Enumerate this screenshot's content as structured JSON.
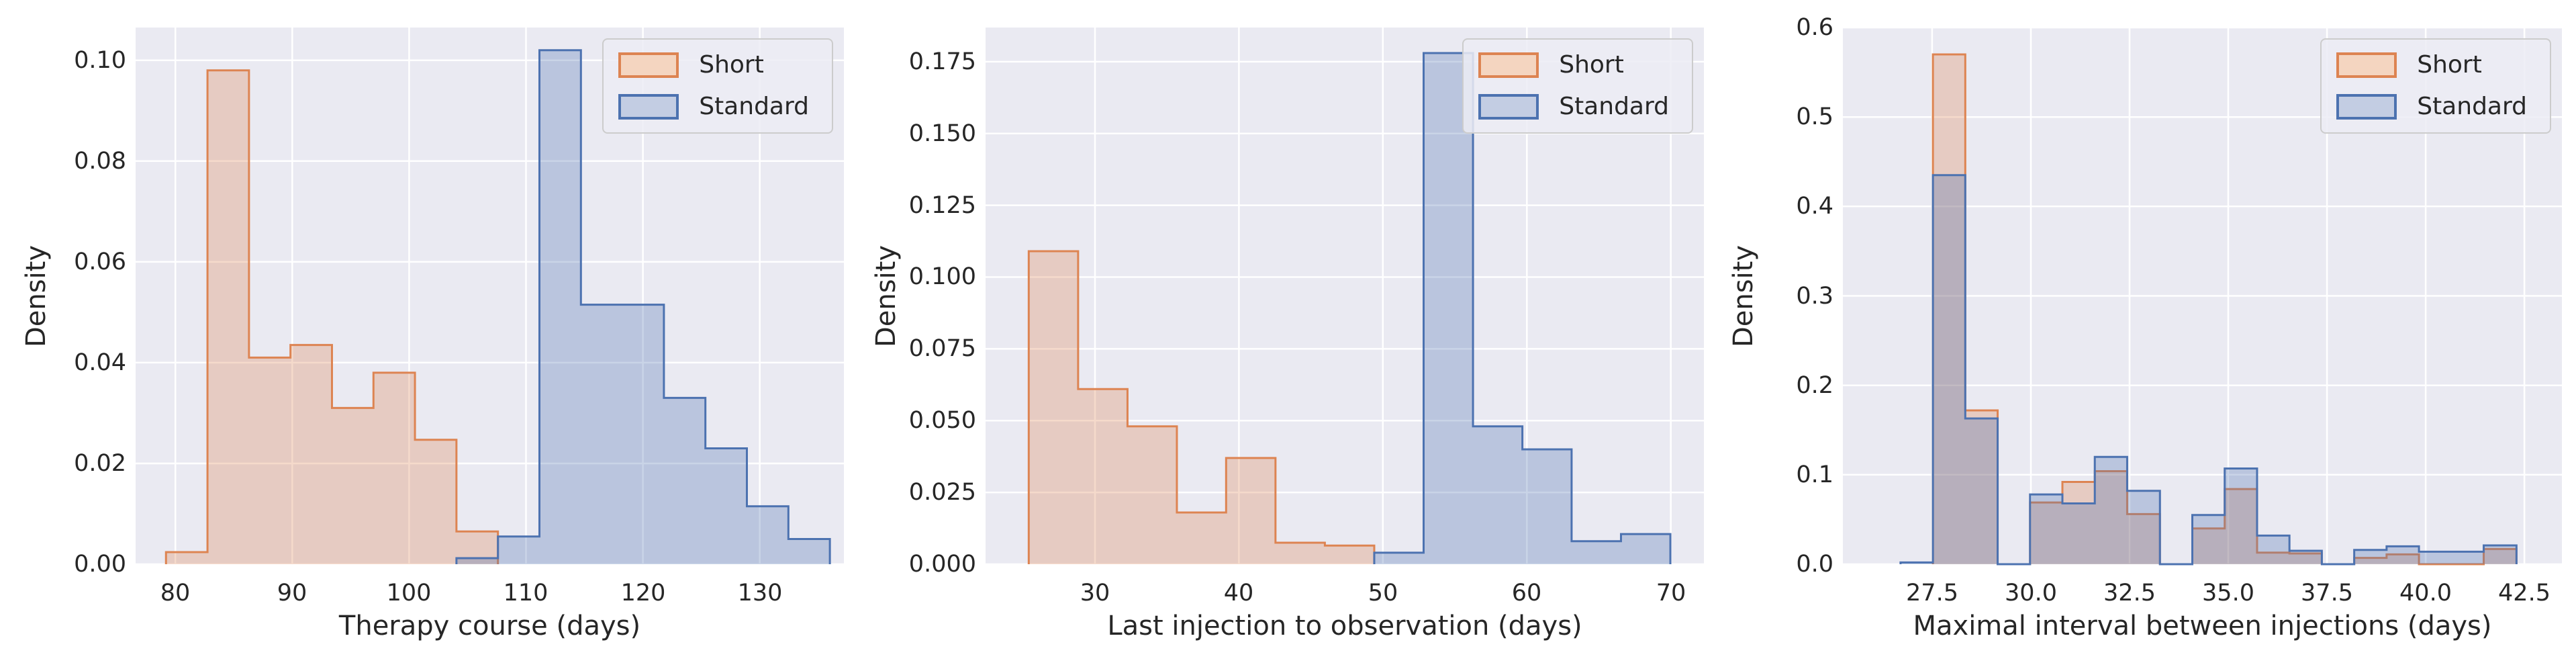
{
  "figure": {
    "background": "#ffffff",
    "panel_background": "#eaeaf2",
    "grid_color": "#ffffff",
    "text_color": "#262626"
  },
  "palette": {
    "short_color": "#dd8452",
    "standard_color": "#4c72b0",
    "fill_opacity": 0.3,
    "legend_swatch_short_fill": "#f4d5c0",
    "legend_swatch_standard_fill": "#c3cde3"
  },
  "legend": {
    "items": [
      {
        "label": "Short"
      },
      {
        "label": "Standard"
      }
    ]
  },
  "chart_data": [
    {
      "type": "bar",
      "subtype": "step-density-histogram",
      "title": "",
      "xlabel": "Therapy course (days)",
      "ylabel": "Density",
      "legend_position": "upper right",
      "grid": true,
      "xlim": [
        76.6,
        137.2
      ],
      "ylim": [
        0,
        0.1065
      ],
      "xticks": [
        80,
        90,
        100,
        110,
        120,
        130
      ],
      "xtick_labels": [
        "80",
        "90",
        "100",
        "110",
        "120",
        "130"
      ],
      "yticks": [
        0.0,
        0.02,
        0.04,
        0.06,
        0.08,
        0.1
      ],
      "ytick_labels": [
        "0.00",
        "0.02",
        "0.04",
        "0.06",
        "0.08",
        "0.10"
      ],
      "series": [
        {
          "name": "Short",
          "bin_edges": [
            79.2,
            82.75,
            86.3,
            89.85,
            93.4,
            96.95,
            100.5,
            104.05,
            107.6
          ],
          "densities": [
            0.0024,
            0.098,
            0.041,
            0.0435,
            0.031,
            0.038,
            0.0247,
            0.0065
          ]
        },
        {
          "name": "Standard",
          "bin_edges": [
            104.05,
            107.6,
            111.15,
            114.7,
            118.25,
            121.8,
            125.35,
            128.9,
            132.45,
            136.0
          ],
          "densities": [
            0.0012,
            0.0055,
            0.102,
            0.0515,
            0.0515,
            0.033,
            0.023,
            0.0115,
            0.005
          ]
        }
      ]
    },
    {
      "type": "bar",
      "subtype": "step-density-histogram",
      "title": "",
      "xlabel": "Last injection to observation (days)",
      "ylabel": "Density",
      "legend_position": "upper right",
      "grid": true,
      "xlim": [
        22.4,
        72.3
      ],
      "ylim": [
        0,
        0.1869
      ],
      "xticks": [
        30,
        40,
        50,
        60,
        70
      ],
      "xtick_labels": [
        "30",
        "40",
        "50",
        "60",
        "70"
      ],
      "yticks": [
        0.0,
        0.025,
        0.05,
        0.075,
        0.1,
        0.125,
        0.15,
        0.175
      ],
      "ytick_labels": [
        "0.000",
        "0.025",
        "0.050",
        "0.075",
        "0.100",
        "0.125",
        "0.150",
        "0.175"
      ],
      "series": [
        {
          "name": "Short",
          "bin_edges": [
            25.4,
            28.83,
            32.26,
            35.69,
            39.11,
            42.54,
            45.97,
            49.4
          ],
          "densities": [
            0.109,
            0.061,
            0.048,
            0.018,
            0.037,
            0.0075,
            0.0065
          ]
        },
        {
          "name": "Standard",
          "bin_edges": [
            49.4,
            52.83,
            56.26,
            59.69,
            63.11,
            66.54,
            69.97
          ],
          "densities": [
            0.004,
            0.178,
            0.048,
            0.04,
            0.008,
            0.0105
          ]
        }
      ]
    },
    {
      "type": "bar",
      "subtype": "step-density-histogram",
      "title": "",
      "xlabel": "Maximal interval between injections (days)",
      "ylabel": "Density",
      "legend_position": "upper right",
      "grid": true,
      "xlim": [
        25.24,
        43.45
      ],
      "ylim": [
        0,
        0.6
      ],
      "xticks": [
        27.5,
        30.0,
        32.5,
        35.0,
        37.5,
        40.0,
        42.5
      ],
      "xtick_labels": [
        "27.5",
        "30.0",
        "32.5",
        "35.0",
        "37.5",
        "40.0",
        "42.5"
      ],
      "yticks": [
        0.0,
        0.1,
        0.2,
        0.3,
        0.4,
        0.5,
        0.6
      ],
      "ytick_labels": [
        "0.0",
        "0.1",
        "0.2",
        "0.3",
        "0.4",
        "0.5",
        "0.6"
      ],
      "series": [
        {
          "name": "Short",
          "bin_edges": [
            26.7,
            27.52,
            28.34,
            29.16,
            29.98,
            30.8,
            31.62,
            32.44,
            33.27,
            34.09,
            34.91,
            35.73,
            36.55,
            37.37,
            38.19,
            39.01,
            39.83,
            40.65,
            41.47,
            42.3
          ],
          "densities": [
            0,
            0.57,
            0.172,
            0,
            0.069,
            0.092,
            0.104,
            0.056,
            0,
            0.04,
            0.084,
            0.013,
            0.012,
            0,
            0.007,
            0.011,
            0,
            0,
            0.017
          ]
        },
        {
          "name": "Standard",
          "bin_edges": [
            26.7,
            27.52,
            28.34,
            29.16,
            29.98,
            30.8,
            31.62,
            32.44,
            33.27,
            34.09,
            34.91,
            35.73,
            36.55,
            37.37,
            38.19,
            39.01,
            39.83,
            40.65,
            41.47,
            42.3
          ],
          "densities": [
            0.002,
            0.435,
            0.163,
            0,
            0.078,
            0.068,
            0.12,
            0.082,
            0,
            0.055,
            0.107,
            0.032,
            0.015,
            0,
            0.016,
            0.02,
            0.014,
            0.014,
            0.021
          ]
        }
      ]
    }
  ]
}
